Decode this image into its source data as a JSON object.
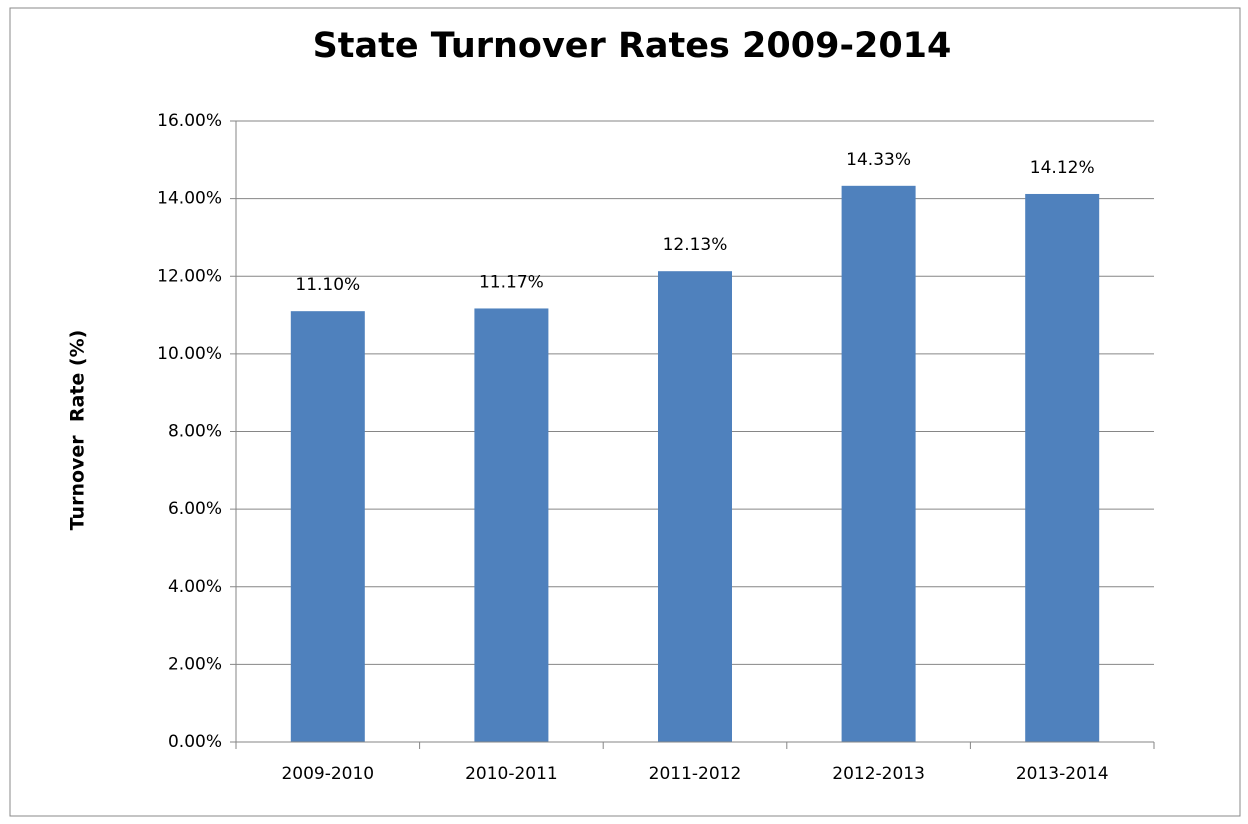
{
  "chart_data": {
    "type": "bar",
    "title": "State Turnover Rates 2009-2014",
    "y_label": "Turnover  Rate (%)",
    "categories": [
      "2009-2010",
      "2010-2011",
      "2011-2012",
      "2012-2013",
      "2013-2014"
    ],
    "values": [
      11.1,
      11.17,
      12.13,
      14.33,
      14.12
    ],
    "value_labels": [
      "11.10%",
      "11.17%",
      "12.13%",
      "14.33%",
      "14.12%"
    ],
    "color": "#4f81bd",
    "ylim": [
      0,
      16
    ],
    "yticks": [
      {
        "value": 0,
        "label": "0.00%"
      },
      {
        "value": 2,
        "label": "2.00%"
      },
      {
        "value": 4,
        "label": "4.00%"
      },
      {
        "value": 6,
        "label": "6.00%"
      },
      {
        "value": 8,
        "label": "8.00%"
      },
      {
        "value": 10,
        "label": "10.00%"
      },
      {
        "value": 12,
        "label": "12.00%"
      },
      {
        "value": 14,
        "label": "14.00%"
      },
      {
        "value": 16,
        "label": "16.00%"
      }
    ],
    "grid": true
  }
}
